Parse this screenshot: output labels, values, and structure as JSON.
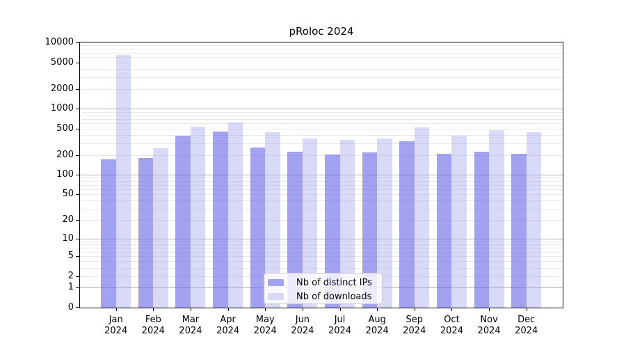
{
  "title": "pRoloc 2024",
  "chart_data": {
    "type": "bar",
    "title": "pRoloc 2024",
    "categories": [
      "Jan",
      "Feb",
      "Mar",
      "Apr",
      "May",
      "Jun",
      "Jul",
      "Aug",
      "Sep",
      "Oct",
      "Nov",
      "Dec"
    ],
    "category_year": "2024",
    "series": [
      {
        "name": "Nb of distinct IPs",
        "color": "#a2a2f0",
        "values": [
          172,
          182,
          390,
          447,
          257,
          224,
          205,
          217,
          325,
          210,
          226,
          208
        ]
      },
      {
        "name": "Nb of downloads",
        "color": "#d9d9f8",
        "values": [
          6500,
          251,
          536,
          626,
          440,
          355,
          338,
          355,
          524,
          388,
          473,
          440
        ]
      }
    ],
    "y_axis": {
      "scale": "log10(value+1)",
      "tick_labels": [
        0,
        1,
        2,
        5,
        10,
        20,
        50,
        100,
        200,
        500,
        1000,
        2000,
        5000,
        10000
      ],
      "major_gridlines": [
        1,
        10,
        100,
        1000
      ],
      "ylim": [
        0,
        10000
      ],
      "grid": true
    },
    "x_axis": {
      "tick_label_lines": 2
    },
    "legend": {
      "position": "bottom-center",
      "entries": [
        "Nb of distinct IPs",
        "Nb of downloads"
      ]
    }
  },
  "colors": {
    "background": "#ffffff",
    "axis": "#000000",
    "major_gridline": "#b3b3b3",
    "minor_gridline": "#e8e8e8",
    "bar_distinct_ips": "#a2a2f0",
    "bar_downloads": "#d9d9f8",
    "legend_border": "#cccccc"
  }
}
